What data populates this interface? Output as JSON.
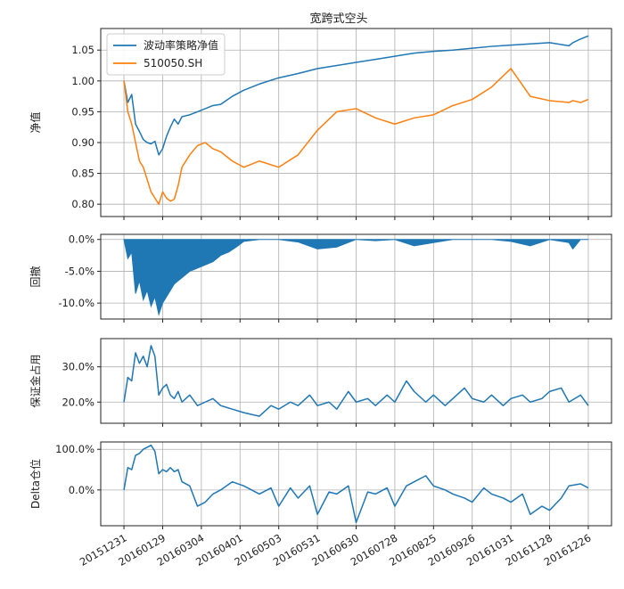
{
  "figure_title": "宽跨式空头",
  "colors": {
    "strategy": "#1f77b4",
    "benchmark": "#ff7f0e",
    "grid": "#b0b0b0"
  },
  "x_tick_labels": [
    "20151231",
    "20160129",
    "20160304",
    "20160401",
    "20160503",
    "20160531",
    "20160630",
    "20160728",
    "20160825",
    "20160926",
    "20161031",
    "20161128",
    "20161226"
  ],
  "chart_data": [
    {
      "type": "line",
      "ylabel": "净值",
      "ylim": [
        0.78,
        1.085
      ],
      "yticks": [
        0.8,
        0.85,
        0.9,
        0.95,
        1.0,
        1.05
      ],
      "ytick_labels": [
        "0.80",
        "0.85",
        "0.90",
        "0.95",
        "1.00",
        "1.05"
      ],
      "legend_position": "upper-left",
      "x": [
        0,
        2,
        4,
        6,
        8,
        10,
        12,
        14,
        16,
        18,
        20,
        22,
        24,
        26,
        28,
        30,
        34,
        38,
        42,
        46,
        50,
        56,
        62,
        70,
        80,
        90,
        100,
        110,
        120,
        130,
        140,
        150,
        160,
        170,
        180,
        190,
        200,
        210,
        220,
        230,
        232,
        236,
        240
      ],
      "series": [
        {
          "name": "波动率策略净值",
          "values": [
            1.0,
            0.965,
            0.978,
            0.93,
            0.918,
            0.905,
            0.9,
            0.898,
            0.902,
            0.88,
            0.89,
            0.91,
            0.925,
            0.938,
            0.93,
            0.942,
            0.945,
            0.95,
            0.955,
            0.96,
            0.962,
            0.975,
            0.985,
            0.995,
            1.005,
            1.012,
            1.02,
            1.025,
            1.03,
            1.035,
            1.04,
            1.045,
            1.048,
            1.05,
            1.053,
            1.056,
            1.058,
            1.06,
            1.062,
            1.057,
            1.062,
            1.068,
            1.073
          ]
        },
        {
          "name": "510050.SH",
          "values": [
            1.0,
            0.95,
            0.93,
            0.9,
            0.87,
            0.86,
            0.84,
            0.82,
            0.81,
            0.8,
            0.82,
            0.81,
            0.805,
            0.808,
            0.83,
            0.86,
            0.88,
            0.895,
            0.9,
            0.89,
            0.885,
            0.87,
            0.86,
            0.87,
            0.86,
            0.88,
            0.92,
            0.95,
            0.955,
            0.94,
            0.93,
            0.94,
            0.945,
            0.96,
            0.97,
            0.99,
            1.02,
            0.975,
            0.968,
            0.965,
            0.968,
            0.965,
            0.97
          ]
        }
      ]
    },
    {
      "type": "area",
      "ylabel": "回撤",
      "ylim": [
        -12.5,
        0.8
      ],
      "yticks": [
        -10,
        -5,
        0
      ],
      "ytick_labels": [
        "-10.0%",
        "-5.0%",
        "0.0%"
      ],
      "x": [
        0,
        2,
        4,
        6,
        8,
        10,
        12,
        14,
        16,
        18,
        20,
        22,
        24,
        26,
        28,
        30,
        34,
        38,
        42,
        46,
        50,
        54,
        58,
        62,
        70,
        80,
        90,
        100,
        110,
        120,
        130,
        140,
        150,
        160,
        170,
        180,
        190,
        200,
        210,
        220,
        230,
        232,
        236,
        240
      ],
      "series": [
        {
          "name": "",
          "values": [
            0,
            -3,
            -2,
            -8.5,
            -6.5,
            -9.5,
            -8,
            -10.5,
            -9,
            -11.8,
            -10,
            -9,
            -8,
            -7,
            -6.5,
            -6,
            -5,
            -4.5,
            -4,
            -3.5,
            -2.5,
            -2,
            -1.2,
            -0.3,
            0,
            0,
            -0.4,
            -1.5,
            -1.2,
            0,
            -0.2,
            0,
            -1.0,
            -0.5,
            0,
            0,
            0,
            -0.3,
            -1.0,
            0,
            -0.5,
            -1.5,
            0,
            0
          ]
        }
      ]
    },
    {
      "type": "line",
      "ylabel": "保证金占用",
      "ylim": [
        14,
        38
      ],
      "yticks": [
        20,
        30
      ],
      "ytick_labels": [
        "20.0%",
        "30.0%"
      ],
      "x": [
        0,
        2,
        4,
        6,
        8,
        10,
        12,
        14,
        16,
        18,
        20,
        22,
        24,
        26,
        28,
        30,
        34,
        38,
        42,
        46,
        50,
        56,
        62,
        70,
        76,
        80,
        86,
        90,
        96,
        100,
        106,
        110,
        116,
        120,
        126,
        130,
        136,
        140,
        146,
        150,
        156,
        160,
        166,
        170,
        176,
        180,
        186,
        190,
        196,
        200,
        206,
        210,
        216,
        220,
        226,
        230,
        236,
        240
      ],
      "series": [
        {
          "name": "",
          "values": [
            20,
            27,
            26,
            34,
            31,
            33,
            30,
            36,
            33,
            22,
            24,
            25,
            22,
            21,
            23,
            20,
            22,
            19,
            20,
            21,
            19,
            18,
            17,
            16,
            19,
            18,
            20,
            19,
            22,
            19,
            20,
            18,
            23,
            20,
            21,
            19,
            22,
            20,
            26,
            23,
            20,
            22,
            19,
            21,
            24,
            21,
            20,
            22,
            19,
            21,
            22,
            20,
            21,
            23,
            24,
            20,
            22,
            19
          ]
        }
      ]
    },
    {
      "type": "line",
      "ylabel": "Delta仓位",
      "ylim": [
        -88,
        118
      ],
      "yticks": [
        0,
        100
      ],
      "ytick_labels": [
        "0.0%",
        "100.0%"
      ],
      "x": [
        0,
        2,
        4,
        6,
        8,
        10,
        12,
        14,
        16,
        18,
        20,
        22,
        24,
        26,
        28,
        30,
        34,
        38,
        42,
        46,
        50,
        56,
        62,
        70,
        76,
        80,
        86,
        90,
        96,
        100,
        106,
        110,
        116,
        120,
        126,
        130,
        136,
        140,
        146,
        150,
        156,
        160,
        166,
        170,
        176,
        180,
        186,
        190,
        196,
        200,
        206,
        210,
        216,
        220,
        226,
        230,
        236,
        240
      ],
      "series": [
        {
          "name": "",
          "values": [
            0,
            55,
            50,
            85,
            90,
            100,
            105,
            110,
            95,
            40,
            50,
            45,
            55,
            45,
            50,
            20,
            10,
            -40,
            -30,
            -10,
            0,
            20,
            10,
            -10,
            5,
            -40,
            5,
            -20,
            10,
            -60,
            -5,
            -10,
            10,
            -80,
            -5,
            -10,
            5,
            -40,
            10,
            20,
            35,
            10,
            0,
            -10,
            -20,
            -30,
            5,
            -10,
            -20,
            -30,
            -10,
            -60,
            -40,
            -50,
            -20,
            10,
            15,
            5
          ]
        }
      ]
    }
  ]
}
